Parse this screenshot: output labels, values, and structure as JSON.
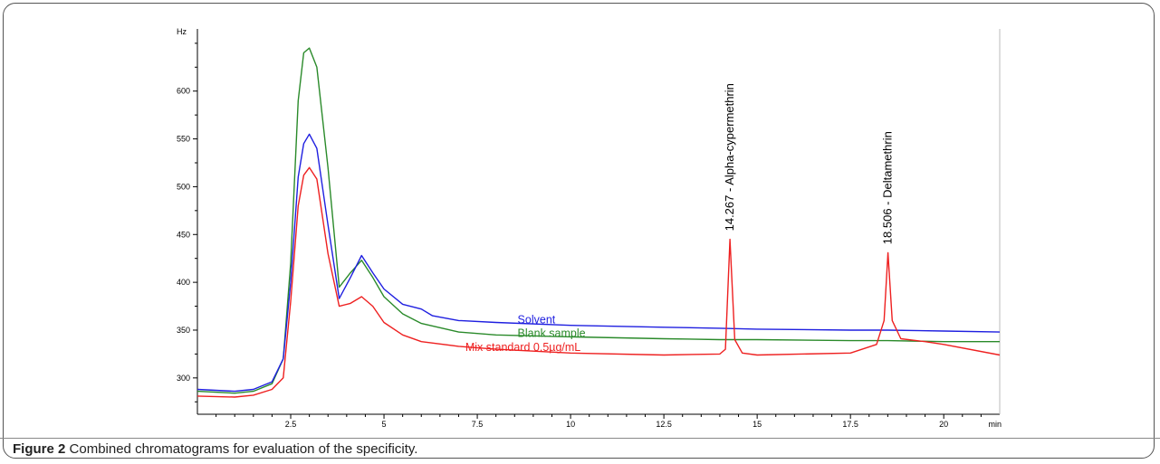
{
  "caption": {
    "label": "Figure 2",
    "text": "Combined chromatograms for evaluation of the specificity."
  },
  "chart_data": {
    "type": "line",
    "xlabel": "min",
    "ylabel": "Hz",
    "xlim": [
      0,
      21.5
    ],
    "ylim": [
      262,
      665
    ],
    "x_ticks": [
      2.5,
      5,
      7.5,
      10,
      12.5,
      15,
      17.5,
      20
    ],
    "x_tick_labels": [
      "2.5",
      "5",
      "7.5",
      "10",
      "12.5",
      "15",
      "17.5",
      "20"
    ],
    "y_ticks": [
      300,
      350,
      400,
      450,
      500,
      550,
      600
    ],
    "y_tick_labels": [
      "300",
      "350",
      "400",
      "450",
      "500",
      "550",
      "600"
    ],
    "grid": false,
    "series": [
      {
        "name": "Solvent",
        "color": "#1f1fe0",
        "x": [
          0,
          1.0,
          1.5,
          2.0,
          2.3,
          2.5,
          2.7,
          2.85,
          3.0,
          3.2,
          3.5,
          3.8,
          4.1,
          4.4,
          4.7,
          5.0,
          5.5,
          6.0,
          6.3,
          7.0,
          8.0,
          10,
          12.5,
          14,
          15,
          17.5,
          18.5,
          20,
          21.5
        ],
        "y": [
          288,
          286,
          288,
          296,
          320,
          400,
          510,
          545,
          555,
          540,
          460,
          383,
          405,
          428,
          410,
          393,
          377,
          372,
          365,
          360,
          358,
          355,
          353,
          352,
          351,
          350,
          350,
          349,
          348
        ]
      },
      {
        "name": "Blank sample",
        "color": "#2a8a2a",
        "x": [
          0,
          1.0,
          1.5,
          2.0,
          2.3,
          2.5,
          2.7,
          2.85,
          3.0,
          3.2,
          3.5,
          3.8,
          4.1,
          4.4,
          4.7,
          5.0,
          5.5,
          6.0,
          7.0,
          8.0,
          10,
          12.5,
          14,
          15,
          17.5,
          18.5,
          20,
          21.5
        ],
        "y": [
          286,
          284,
          286,
          294,
          320,
          420,
          590,
          640,
          645,
          625,
          520,
          395,
          410,
          423,
          405,
          385,
          367,
          357,
          348,
          345,
          343,
          341,
          340,
          340,
          339,
          339,
          338,
          338
        ]
      },
      {
        "name": "Mix standard 0.5µg/mL",
        "color": "#ee2020",
        "x": [
          0,
          1.0,
          1.5,
          2.0,
          2.3,
          2.5,
          2.7,
          2.85,
          3.0,
          3.2,
          3.5,
          3.8,
          4.1,
          4.4,
          4.7,
          5.0,
          5.5,
          6.0,
          7.0,
          8.0,
          10,
          12.5,
          14.0,
          14.15,
          14.27,
          14.4,
          14.6,
          15,
          17.5,
          18.2,
          18.4,
          18.506,
          18.62,
          18.85,
          19.5,
          20,
          21.5
        ],
        "y": [
          281,
          280,
          282,
          288,
          300,
          380,
          480,
          512,
          520,
          508,
          430,
          375,
          378,
          385,
          375,
          358,
          345,
          338,
          333,
          330,
          326,
          324,
          325,
          330,
          445,
          340,
          326,
          324,
          326,
          335,
          360,
          431,
          360,
          341,
          338,
          335,
          324
        ]
      }
    ],
    "annotations": [
      {
        "text": "14.267 -  Alpha-cypermethrin",
        "x": 14.267
      },
      {
        "text": "18.506 -  Deltamethrin",
        "x": 18.506
      }
    ]
  }
}
